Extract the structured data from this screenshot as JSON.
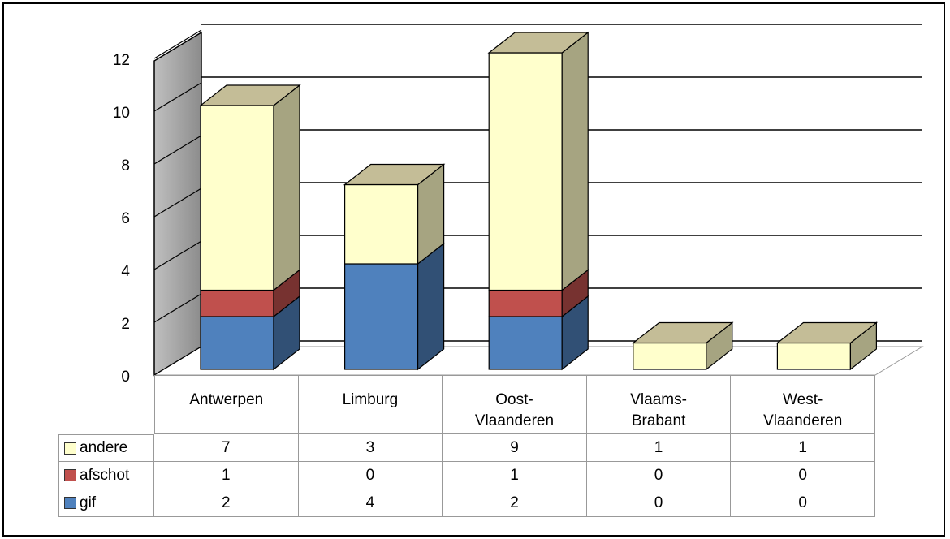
{
  "chart_data": {
    "type": "bar3d_stacked",
    "categories": [
      "Antwerpen",
      "Limburg",
      "Oost-Vlaanderen",
      "Vlaams-Brabant",
      "West-Vlaanderen"
    ],
    "series": [
      {
        "name": "gif",
        "color": "#4f81bd",
        "values": [
          2,
          4,
          2,
          0,
          0
        ]
      },
      {
        "name": "afschot",
        "color": "#c0504d",
        "values": [
          1,
          0,
          1,
          0,
          0
        ]
      },
      {
        "name": "andere",
        "color": "#ffffcc",
        "values": [
          7,
          3,
          9,
          1,
          1
        ]
      }
    ],
    "ylim": [
      0,
      12
    ],
    "yticks": [
      0,
      2,
      4,
      6,
      8,
      10,
      12
    ],
    "grid": true
  }
}
